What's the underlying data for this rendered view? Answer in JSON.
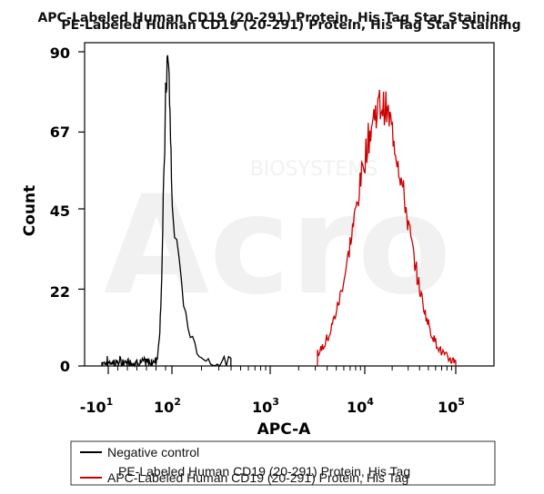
{
  "chart_data": {
    "type": "line",
    "title_lines": [
      "APC-Labeled Human CD19 (20-291) Protein, His Tag Star Staining",
      "PE-Labeled Human CD19 (20-291) Protein, His Tag Star Staining"
    ],
    "xlabel": "APC-A",
    "ylabel": "Count",
    "ylim": [
      0,
      90
    ],
    "y_ticks": [
      0,
      22,
      45,
      67,
      90
    ],
    "x_ticks": [
      {
        "base": "-10",
        "exp": "1",
        "pos": -1
      },
      {
        "base": "10",
        "exp": "2",
        "pos": 2
      },
      {
        "base": "10",
        "exp": "3",
        "pos": 3
      },
      {
        "base": "10",
        "exp": "4",
        "pos": 4
      },
      {
        "base": "10",
        "exp": "5",
        "pos": 5
      }
    ],
    "watermark": [
      "BIOSYSTEMS",
      "Acro"
    ],
    "legend": {
      "placement": "bottom",
      "entries": [
        {
          "label": "Negative control",
          "color": "#000000"
        },
        {
          "label": "APC-Labeled Human CD19 (20-291) Protein, His Tag",
          "color": "#cc0000",
          "overlay_label": "PE-Labeled Human CD19 (20-291) Protein, His Tag"
        }
      ]
    },
    "series": [
      {
        "color": "#000000",
        "x_center": 1.8,
        "x_width": 0.18,
        "x_start": -1.3,
        "x_end": 2.6,
        "peak": 86,
        "baseline": 2
      },
      {
        "color": "#cc0000",
        "x_center": 4.18,
        "x_width": 0.27,
        "x_start": 3.5,
        "x_end": 5.0,
        "peak": 74,
        "baseline": 1
      }
    ]
  }
}
